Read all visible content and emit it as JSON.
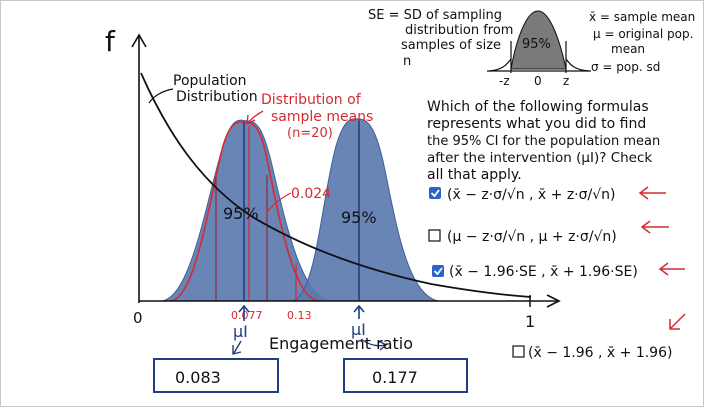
{
  "graph": {
    "y_axis_label": "f",
    "x_axis_label": "Engagement ratio",
    "origin_label": "0",
    "one_label": "1",
    "population_label": [
      "Population",
      "Distribution"
    ],
    "sampling_label": [
      "Distribution of",
      "sample means",
      "(n=20)"
    ],
    "left_peak_text": "95%",
    "right_peak_text": "95%",
    "left_tick": "0.077",
    "right_tick": "0.13",
    "left_tail_value": "0.024",
    "mu_i_left": "μI",
    "mu_i_right": "μI",
    "box_left": "0.083",
    "box_right": "0.177"
  },
  "legend": {
    "se_def": [
      "SE = SD of sampling",
      "distribution from",
      "samples of size",
      "n"
    ],
    "bell_text": "95%",
    "bell_ticks": [
      "-z",
      "0",
      "z"
    ],
    "xbar_def": "x̄ = sample mean",
    "mu_def": [
      "μ = original pop.",
      "mean"
    ],
    "sigma_def": "σ = pop. sd"
  },
  "question": {
    "lines": [
      "Which of the following formulas",
      "represents what you did to find",
      "the 95% CI for the population mean",
      "after the intervention (μI)? Check",
      "all that apply."
    ],
    "options": [
      {
        "text": "(x̄ − z·σ/√n ,  x̄ + z·σ/√n)",
        "checked": true
      },
      {
        "text": "(μ − z·σ/√n ,  μ + z·σ/√n)",
        "checked": false
      },
      {
        "text": "(x̄ − 1.96·SE ,  x̄ + 1.96·SE)",
        "checked": true
      },
      {
        "text": "(x̄ − 1.96 ,  x̄ + 1.96)",
        "checked": false
      }
    ]
  },
  "colors": {
    "fill_blue": "#5b7bb0",
    "fill_blue_edge": "#3f5f96",
    "dark_blue": "#1f3f80",
    "red": "#d62a33",
    "black": "#111111",
    "checkbox_blue": "#2d63c8"
  }
}
